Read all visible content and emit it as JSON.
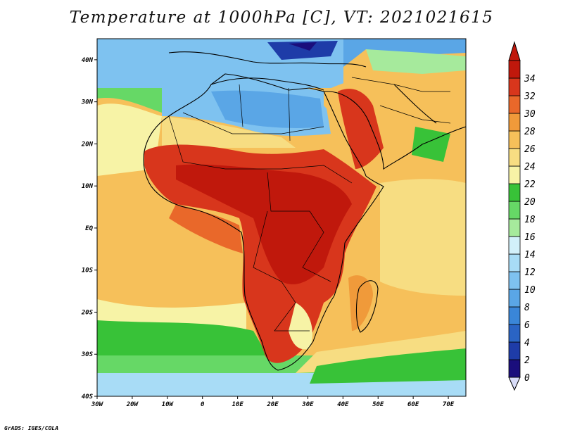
{
  "title": "Temperature at 1000hPa [C], VT: 2021021615",
  "credit": "GrADS: IGES/COLA",
  "map": {
    "lon_range": [
      -30,
      75
    ],
    "lat_range": [
      -40,
      45
    ],
    "lon_ticks": [
      "30W",
      "20W",
      "10W",
      "0",
      "10E",
      "20E",
      "30E",
      "40E",
      "50E",
      "60E",
      "70E"
    ],
    "lat_ticks": [
      "40S",
      "30S",
      "20S",
      "10S",
      "EQ",
      "10N",
      "20N",
      "30N",
      "40N"
    ]
  },
  "colorbar": {
    "levels": [
      "0",
      "2",
      "4",
      "6",
      "8",
      "10",
      "12",
      "14",
      "16",
      "18",
      "20",
      "22",
      "24",
      "26",
      "28",
      "30",
      "32",
      "34"
    ],
    "colors": [
      "#1a0e7c",
      "#1e3ca8",
      "#2a64c4",
      "#3a86d8",
      "#5aa6e6",
      "#7ec2f0",
      "#a8dcf6",
      "#d2f0fa",
      "#a6ea9c",
      "#66d866",
      "#38c238",
      "#f7f3a6",
      "#f7dd82",
      "#f6c05a",
      "#f09a3a",
      "#e9682a",
      "#d8361c",
      "#c0180c"
    ],
    "under_color": "#d8dcf8"
  }
}
